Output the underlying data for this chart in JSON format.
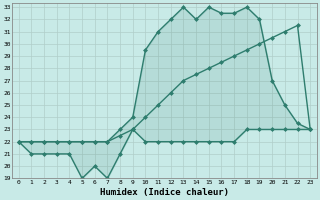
{
  "xlabel": "Humidex (Indice chaleur)",
  "x": [
    0,
    1,
    2,
    3,
    4,
    5,
    6,
    7,
    8,
    9,
    10,
    11,
    12,
    13,
    14,
    15,
    16,
    17,
    18,
    19,
    20,
    21,
    22,
    23
  ],
  "line_min": [
    22,
    21,
    21,
    21,
    21,
    19,
    20,
    19,
    21,
    23,
    22,
    22,
    22,
    22,
    22,
    22,
    22,
    22,
    23,
    23,
    23,
    23,
    23,
    23
  ],
  "line_mean": [
    22,
    22,
    22,
    22,
    22,
    22,
    22,
    22,
    22.5,
    23,
    24,
    25,
    26,
    27,
    27.5,
    28,
    28.5,
    29,
    29.5,
    30,
    30.5,
    31,
    31.5,
    23
  ],
  "line_max": [
    22,
    22,
    22,
    22,
    22,
    22,
    22,
    22,
    23,
    24,
    29.5,
    31,
    32,
    33,
    32,
    33,
    32.5,
    32.5,
    33,
    32,
    27,
    25,
    23.5,
    23
  ],
  "color": "#2e7d6e",
  "bg_color": "#c8eae7",
  "grid_color": "#b0ceca",
  "ylim": [
    19,
    33
  ],
  "xlim": [
    -0.5,
    23.5
  ]
}
